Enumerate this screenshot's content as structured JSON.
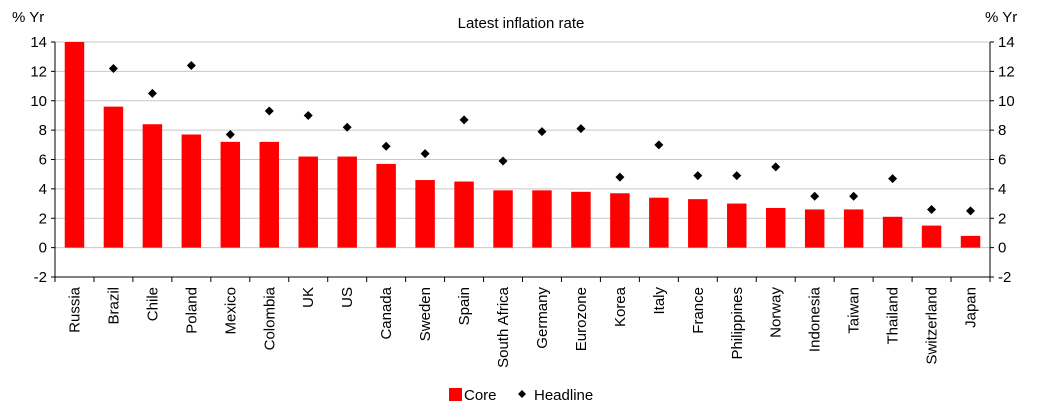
{
  "chart_data": {
    "type": "bar",
    "title": "Latest inflation rate",
    "ylabel_left": "% Yr",
    "ylabel_right": "% Yr",
    "ylim": [
      -2,
      14
    ],
    "yticks": [
      -2,
      0,
      2,
      4,
      6,
      8,
      10,
      12,
      14
    ],
    "grid": true,
    "legend_position": "bottom",
    "categories": [
      "Russia",
      "Brazil",
      "Chile",
      "Poland",
      "Mexico",
      "Colombia",
      "UK",
      "US",
      "Canada",
      "Sweden",
      "Spain",
      "South Africa",
      "Germany",
      "Eurozone",
      "Korea",
      "Italy",
      "France",
      "Philippines",
      "Norway",
      "Indonesia",
      "Taiwan",
      "Thailand",
      "Switzerland",
      "Japan"
    ],
    "series": [
      {
        "name": "Core",
        "type": "bar",
        "color": "#ff0000",
        "values": [
          14.2,
          9.6,
          8.4,
          7.7,
          7.2,
          7.2,
          6.2,
          6.2,
          5.7,
          4.6,
          4.5,
          3.9,
          3.9,
          3.8,
          3.7,
          3.4,
          3.3,
          3.0,
          2.7,
          2.6,
          2.6,
          2.1,
          1.5,
          0.8
        ]
      },
      {
        "name": "Headline",
        "type": "scatter",
        "color": "#000000",
        "values": [
          null,
          12.2,
          10.5,
          12.4,
          7.7,
          9.3,
          9.0,
          8.2,
          6.9,
          6.4,
          8.7,
          5.9,
          7.9,
          8.1,
          4.8,
          7.0,
          4.9,
          4.9,
          5.5,
          3.5,
          3.5,
          4.7,
          2.6,
          2.5
        ]
      }
    ]
  }
}
